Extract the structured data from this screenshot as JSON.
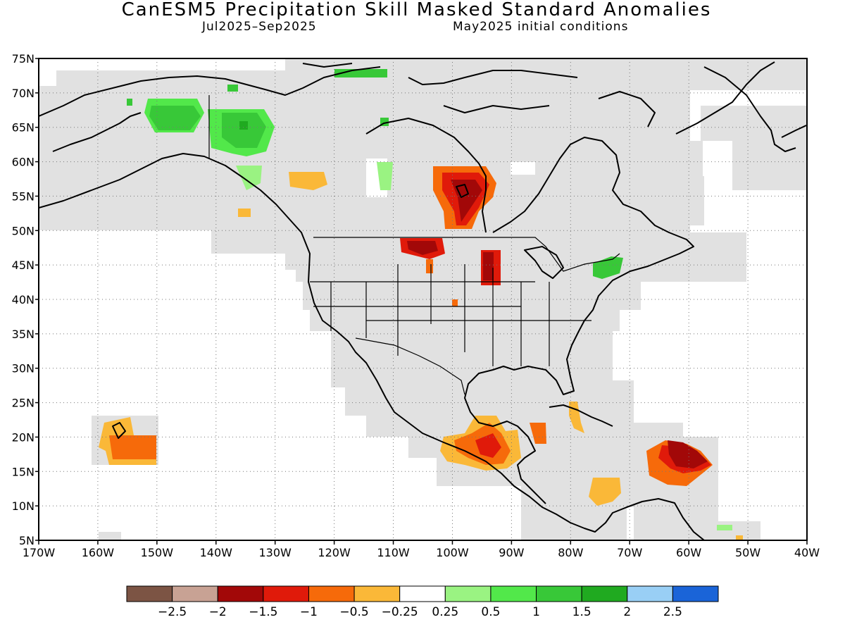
{
  "title": "CanESM5 Precipitation Skill Masked Standard Anomalies",
  "subtitle_left": "Jul2025–Sep2025",
  "subtitle_right": "May2025 initial conditions",
  "map": {
    "lon_range": [
      -170,
      -40
    ],
    "lat_range": [
      5,
      75
    ],
    "lon_labels": [
      "170W",
      "160W",
      "150W",
      "140W",
      "130W",
      "120W",
      "110W",
      "100W",
      "90W",
      "80W",
      "70W",
      "60W",
      "50W",
      "40W"
    ],
    "lat_labels": [
      "75N",
      "70N",
      "65N",
      "60N",
      "55N",
      "50N",
      "45N",
      "40N",
      "35N",
      "30N",
      "25N",
      "20N",
      "15N",
      "10N",
      "5N"
    ],
    "mask_color": "#e1e1e1",
    "land_outline_color": "#000000",
    "graticule": "dotted",
    "anomaly_regions": [
      {
        "name": "alaska-interior-wet",
        "lon": [
          -156,
          -147
        ],
        "lat": [
          64,
          67
        ],
        "category": "1 to 1.5"
      },
      {
        "name": "yukon-wet",
        "lon": [
          -140,
          -131
        ],
        "lat": [
          61,
          67
        ],
        "category": "1 to 1.5"
      },
      {
        "name": "canadian-arctic-wet",
        "lon": [
          -115,
          -108
        ],
        "lat": [
          71,
          73
        ],
        "category": "1 to 1.5"
      },
      {
        "name": "bc-coast-wet",
        "lon": [
          -134,
          -131
        ],
        "lat": [
          55,
          60
        ],
        "category": "0.25 to 0.5"
      },
      {
        "name": "bc-interior-dry",
        "lon": [
          -126,
          -121
        ],
        "lat": [
          55,
          58
        ],
        "category": "-0.5 to -0.25"
      },
      {
        "name": "manitoba-dry",
        "lon": [
          -102,
          -94
        ],
        "lat": [
          50,
          60
        ],
        "category": "-2 to -1.5"
      },
      {
        "name": "montana-dry",
        "lon": [
          -107,
          -101
        ],
        "lat": [
          46,
          49
        ],
        "category": "-2 to -1.5"
      },
      {
        "name": "minnesota-dry",
        "lon": [
          -96,
          -93
        ],
        "lat": [
          42,
          47
        ],
        "category": "-2 to -1.5"
      },
      {
        "name": "nebraska-dry",
        "lon": [
          -101,
          -100
        ],
        "lat": [
          39,
          40
        ],
        "category": "-1 to -0.5"
      },
      {
        "name": "new-york-wet",
        "lon": [
          -76,
          -72
        ],
        "lat": [
          43,
          46
        ],
        "category": "1 to 1.5"
      },
      {
        "name": "hawaii-dry",
        "lon": [
          -160,
          -150
        ],
        "lat": [
          16,
          22
        ],
        "category": "-1 to -0.5"
      },
      {
        "name": "southern-mexico-dry",
        "lon": [
          -102,
          -92
        ],
        "lat": [
          14,
          23
        ],
        "category": "-1.5 to -1"
      },
      {
        "name": "yucatan-dry",
        "lon": [
          -87,
          -84
        ],
        "lat": [
          19,
          22
        ],
        "category": "-1 to -0.5"
      },
      {
        "name": "cuba-dry",
        "lon": [
          -81,
          -79
        ],
        "lat": [
          21,
          25
        ],
        "category": "-0.5 to -0.25"
      },
      {
        "name": "caribbean-west-dry",
        "lon": [
          -78,
          -74
        ],
        "lat": [
          10,
          14
        ],
        "category": "-0.5 to -0.25"
      },
      {
        "name": "lesser-antilles-dry",
        "lon": [
          -66,
          -56
        ],
        "lat": [
          13,
          20
        ],
        "category": "-2 to -1.5"
      },
      {
        "name": "guiana-wet",
        "lon": [
          -54,
          -50
        ],
        "lat": [
          6,
          7
        ],
        "category": "0.25 to 0.5"
      }
    ]
  },
  "colorbar": {
    "colors": [
      "#7c5444",
      "#c8a294",
      "#a20808",
      "#e01a0a",
      "#f66a0a",
      "#fab838",
      "#ffffff",
      "#9af382",
      "#52e84a",
      "#38c838",
      "#20aa20",
      "#99cff5",
      "#1a64d8"
    ],
    "labels": [
      "−2.5",
      "−2",
      "−1.5",
      "−1",
      "−0.5",
      "−0.25",
      "0.25",
      "0.5",
      "1",
      "1.5",
      "2",
      "2.5"
    ]
  }
}
